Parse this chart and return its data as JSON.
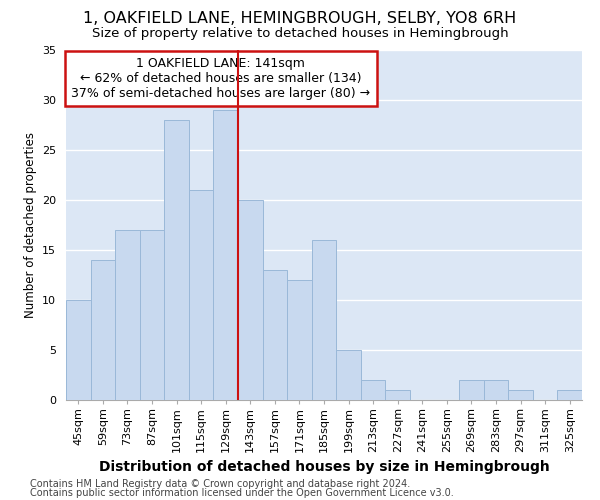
{
  "title": "1, OAKFIELD LANE, HEMINGBROUGH, SELBY, YO8 6RH",
  "subtitle": "Size of property relative to detached houses in Hemingbrough",
  "xlabel": "Distribution of detached houses by size in Hemingbrough",
  "ylabel": "Number of detached properties",
  "categories": [
    "45sqm",
    "59sqm",
    "73sqm",
    "87sqm",
    "101sqm",
    "115sqm",
    "129sqm",
    "143sqm",
    "157sqm",
    "171sqm",
    "185sqm",
    "199sqm",
    "213sqm",
    "227sqm",
    "241sqm",
    "255sqm",
    "269sqm",
    "283sqm",
    "297sqm",
    "311sqm",
    "325sqm"
  ],
  "values": [
    10,
    14,
    17,
    17,
    28,
    21,
    29,
    20,
    13,
    12,
    16,
    5,
    2,
    1,
    0,
    0,
    2,
    2,
    1,
    0,
    1
  ],
  "bar_color": "#c8d9ef",
  "bar_edgecolor": "#9ab8d8",
  "vline_color": "#cc1111",
  "annotation_text": "1 OAKFIELD LANE: 141sqm\n← 62% of detached houses are smaller (134)\n37% of semi-detached houses are larger (80) →",
  "annotation_box_edgecolor": "#cc1111",
  "vline_index": 7,
  "ylim": [
    0,
    35
  ],
  "yticks": [
    0,
    5,
    10,
    15,
    20,
    25,
    30,
    35
  ],
  "grid_color": "#ffffff",
  "bg_color": "#dce7f5",
  "footnote_line1": "Contains HM Land Registry data © Crown copyright and database right 2024.",
  "footnote_line2": "Contains public sector information licensed under the Open Government Licence v3.0.",
  "title_fontsize": 11.5,
  "subtitle_fontsize": 9.5,
  "xlabel_fontsize": 10,
  "ylabel_fontsize": 8.5,
  "tick_fontsize": 8,
  "annot_fontsize": 9,
  "footnote_fontsize": 7
}
